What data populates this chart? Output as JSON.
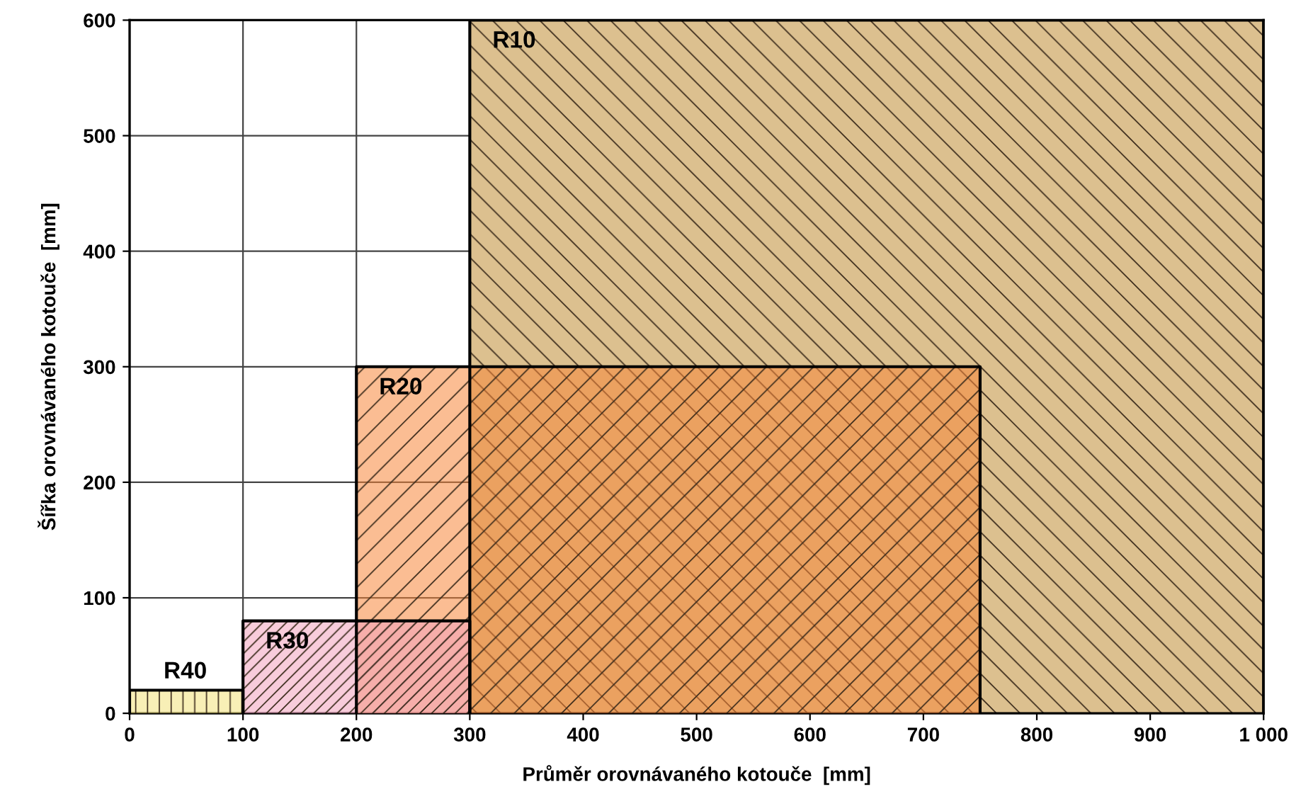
{
  "chart_data": {
    "type": "area",
    "xlabel": "Průměr orovnávaného kotouče  [mm]",
    "ylabel": "Šířka orovnávaného kotouče  [mm]",
    "series": [
      {
        "name": "R10",
        "color": "#dcc08f",
        "x": [
          300,
          1000
        ],
        "values": [
          600,
          600
        ]
      },
      {
        "name": "R20",
        "color": "#f7863a",
        "x": [
          200,
          750
        ],
        "values": [
          300,
          300
        ]
      },
      {
        "name": "R30",
        "color": "#f2a3bd",
        "x": [
          100,
          300
        ],
        "values": [
          80,
          80
        ]
      },
      {
        "name": "R40",
        "color": "#f3e27a",
        "x": [
          0,
          100
        ],
        "values": [
          20,
          20
        ]
      }
    ],
    "xlim": [
      0,
      1000
    ],
    "xticks": [
      0,
      100,
      200,
      300,
      400,
      500,
      600,
      700,
      800,
      900,
      {
        "value": 1000,
        "label": "1 000"
      }
    ],
    "ylim": [
      0,
      600
    ],
    "yticks": [
      0,
      100,
      200,
      300,
      400,
      500,
      600
    ],
    "grid": true
  }
}
